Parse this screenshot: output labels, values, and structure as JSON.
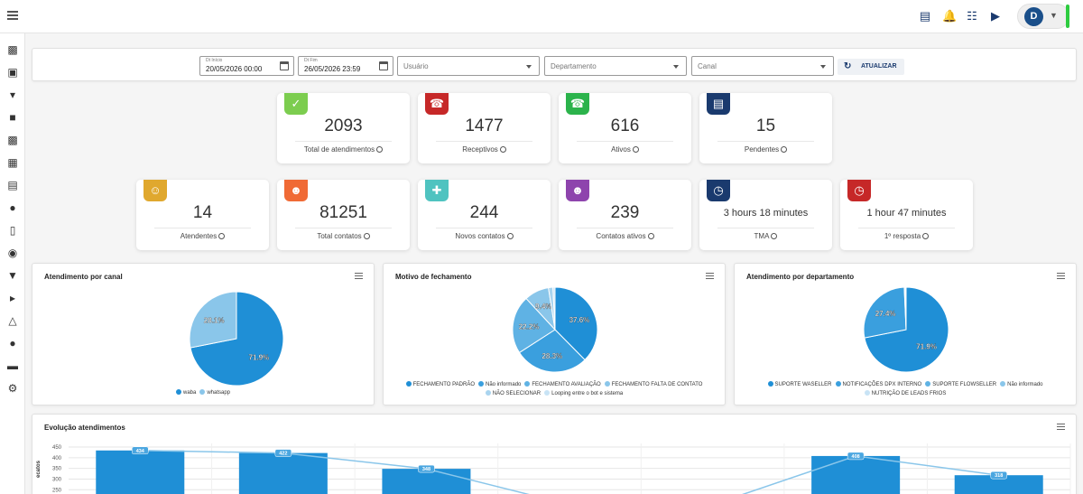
{
  "header": {
    "avatar_initial": "D"
  },
  "filters": {
    "start_label": "Dt Início",
    "start_value": "20/05/2026 00:00",
    "end_label": "Dt Fim",
    "end_value": "26/05/2026 23:59",
    "user_placeholder": "Usuário",
    "department_placeholder": "Departamento",
    "channel_placeholder": "Canal",
    "refresh_label": "ATUALIZAR"
  },
  "cards": [
    {
      "value": "2093",
      "label": "Total de atendimentos",
      "color": "#7ccd4f",
      "icon": "double-check-icon"
    },
    {
      "value": "1477",
      "label": "Receptivos",
      "color": "#c62828",
      "icon": "incoming-call-icon"
    },
    {
      "value": "616",
      "label": "Ativos",
      "color": "#2bb34b",
      "icon": "outgoing-call-icon"
    },
    {
      "value": "15",
      "label": "Pendentes",
      "color": "#1a3a6e",
      "icon": "pending-list-icon"
    },
    {
      "value": "14",
      "label": "Atendentes",
      "color": "#e0a82e",
      "icon": "agents-icon"
    },
    {
      "value": "81251",
      "label": "Total contatos",
      "color": "#f06a35",
      "icon": "contacts-icon"
    },
    {
      "value": "244",
      "label": "Novos contatos",
      "color": "#4fc3c0",
      "icon": "new-contacts-icon"
    },
    {
      "value": "239",
      "label": "Contatos ativos",
      "color": "#8e44ad",
      "icon": "active-contacts-icon"
    },
    {
      "value": "3 hours 18 minutes",
      "label": "TMA",
      "color": "#1a3a6e",
      "icon": "clock-check-icon"
    },
    {
      "value": "1 hour 47 minutes",
      "label": "1º resposta",
      "color": "#c62828",
      "icon": "clock-history-icon"
    }
  ],
  "panels": {
    "canal_title": "Atendimento por canal",
    "motivo_title": "Motivo de fechamento",
    "departamento_title": "Atendimento por departamento",
    "evolucao_title": "Evolução atendimentos",
    "evolucao_ylabel": "ecatos"
  },
  "chart_data": [
    {
      "type": "pie",
      "title": "Atendimento por canal",
      "slices": [
        {
          "name": "waba",
          "value": 71.9,
          "label": "71.9%",
          "color": "#1f8fd6"
        },
        {
          "name": "whatsapp",
          "value": 28.1,
          "label": "28.1%",
          "color": "#8ac6ea"
        }
      ]
    },
    {
      "type": "pie",
      "title": "Motivo de fechamento",
      "slices": [
        {
          "name": "FECHAMENTO PADRÃO",
          "value": 37.6,
          "label": "37.6%",
          "color": "#1f8fd6"
        },
        {
          "name": "Não informado",
          "value": 28.3,
          "label": "28.3%",
          "color": "#3a9fde"
        },
        {
          "name": "FECHAMENTO AVALIAÇÃO",
          "value": 22.2,
          "label": "22.2%",
          "color": "#5fb2e4"
        },
        {
          "name": "FECHAMENTO FALTA DE CONTATO",
          "value": 9.4,
          "label": "9.4%",
          "color": "#8ac6ea"
        },
        {
          "name": "NÃO SELECIONAR",
          "value": 1.7,
          "label": "",
          "color": "#a9d4ef"
        },
        {
          "name": "Looping entre o bot e sistema",
          "value": 0.8,
          "label": "",
          "color": "#c8e3f5"
        }
      ]
    },
    {
      "type": "pie",
      "title": "Atendimento por departamento",
      "slices": [
        {
          "name": "SUPORTE WASELLER",
          "value": 71.9,
          "label": "71.9%",
          "color": "#1f8fd6"
        },
        {
          "name": "NOTIFICAÇÕES DPX INTERNO",
          "value": 27.4,
          "label": "27.4%",
          "color": "#3a9fde"
        },
        {
          "name": "SUPORTE FLOWSELLER",
          "value": 0.4,
          "label": "",
          "color": "#5fb2e4"
        },
        {
          "name": "Não informado",
          "value": 0.2,
          "label": "",
          "color": "#8ac6ea"
        },
        {
          "name": "NUTRIÇÃO DE LEADS FRIOS",
          "value": 0.1,
          "label": "",
          "color": "#c8e3f5"
        }
      ]
    },
    {
      "type": "bar",
      "title": "Evolução atendimentos",
      "ylabel": "ecatos",
      "yticks": [
        450,
        400,
        350,
        300,
        250
      ],
      "ylim": [
        230,
        450
      ],
      "bars": [
        434,
        422,
        348,
        null,
        null,
        408,
        318
      ],
      "line": [
        434,
        422,
        348,
        180,
        180,
        408,
        318
      ],
      "bar_labels": [
        "434",
        "422",
        "348",
        "",
        "",
        "408",
        "318"
      ],
      "color": "#1f8fd6",
      "line_color": "#8ac6ea"
    }
  ]
}
